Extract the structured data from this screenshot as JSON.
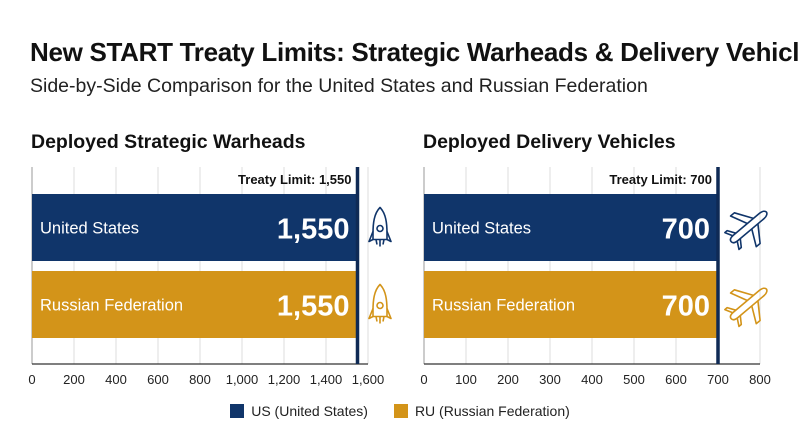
{
  "title": "New START Treaty Limits: Strategic Warheads & Delivery Vehicles",
  "subtitle": "Side-by-Side Comparison for the United States and Russian Federation",
  "colors": {
    "us": "#10356a",
    "ru": "#d39419",
    "limit_line": "#0f2a55",
    "grid": "#dcdcdc",
    "axis": "#333333"
  },
  "legend": [
    {
      "key": "us",
      "label": "US (United States)"
    },
    {
      "key": "ru",
      "label": "RU (Russian Federation)"
    }
  ],
  "chart_data": [
    {
      "type": "bar",
      "orientation": "horizontal",
      "title": "Deployed Strategic Warheads",
      "categories": [
        "United States",
        "Russian Federation"
      ],
      "series": [
        {
          "name": "US (United States)",
          "key": "us",
          "values": [
            1550,
            null
          ]
        },
        {
          "name": "RU (Russian Federation)",
          "key": "ru",
          "values": [
            null,
            1550
          ]
        }
      ],
      "values": [
        1550,
        1550
      ],
      "value_labels": [
        "1,550",
        "1,550"
      ],
      "icon": "rocket-icon",
      "treaty_limit": 1550,
      "treaty_limit_label": "Treaty Limit: 1,550",
      "xlim": [
        0,
        1600
      ],
      "xticks": [
        0,
        200,
        400,
        600,
        800,
        1000,
        1200,
        1400,
        1600
      ],
      "xtick_labels": [
        "0",
        "200",
        "400",
        "600",
        "800",
        "1,000",
        "1,200",
        "1,400",
        "1,600"
      ],
      "grid": true,
      "xlabel": "",
      "ylabel": ""
    },
    {
      "type": "bar",
      "orientation": "horizontal",
      "title": "Deployed Delivery Vehicles",
      "categories": [
        "United States",
        "Russian Federation"
      ],
      "series": [
        {
          "name": "US (United States)",
          "key": "us",
          "values": [
            700,
            null
          ]
        },
        {
          "name": "RU (Russian Federation)",
          "key": "ru",
          "values": [
            null,
            700
          ]
        }
      ],
      "values": [
        700,
        700
      ],
      "value_labels": [
        "700",
        "700"
      ],
      "icon": "airplane-icon",
      "treaty_limit": 700,
      "treaty_limit_label": "Treaty Limit: 700",
      "xlim": [
        0,
        800
      ],
      "xticks": [
        0,
        100,
        200,
        300,
        400,
        500,
        600,
        700,
        800
      ],
      "xtick_labels": [
        "0",
        "100",
        "200",
        "300",
        "400",
        "500",
        "600",
        "700",
        "800"
      ],
      "grid": true,
      "xlabel": "",
      "ylabel": ""
    }
  ]
}
